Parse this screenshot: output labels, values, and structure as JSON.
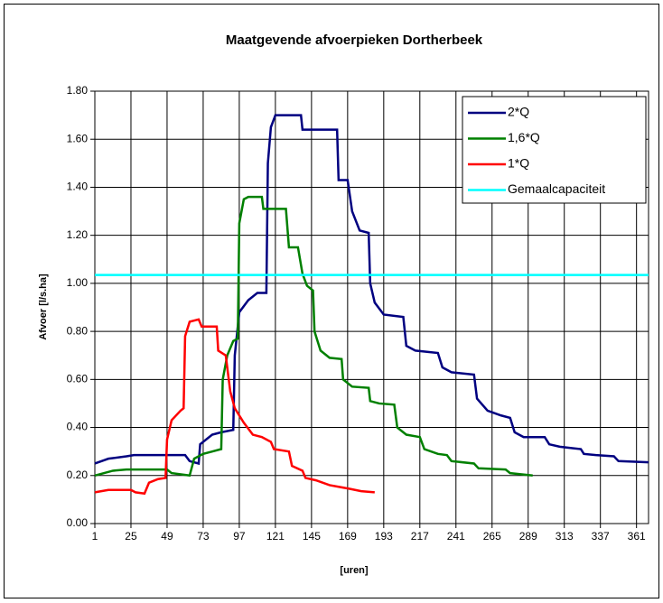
{
  "chart_data": {
    "type": "line",
    "title": "Maatgevende afvoerpieken Dortherbeek",
    "x_label": "[uren]",
    "y_label": "Afvoer [l/s.ha]",
    "xlim": [
      1,
      369
    ],
    "xticks": [
      1,
      25,
      49,
      73,
      97,
      121,
      145,
      169,
      193,
      217,
      241,
      265,
      289,
      313,
      337,
      361
    ],
    "ylim": [
      0,
      1.8
    ],
    "yticks": [
      {
        "value": 0,
        "label": "0.00"
      },
      {
        "value": 0.2,
        "label": "0.20"
      },
      {
        "value": 0.4,
        "label": "0.40"
      },
      {
        "value": 0.6,
        "label": "0.60"
      },
      {
        "value": 0.8,
        "label": "0.80"
      },
      {
        "value": 1.0,
        "label": "1.00"
      },
      {
        "value": 1.2,
        "label": "1.20"
      },
      {
        "value": 1.4,
        "label": "1.40"
      },
      {
        "value": 1.6,
        "label": "1.60"
      },
      {
        "value": 1.8,
        "label": "1.80"
      }
    ],
    "grid": true,
    "legend": "top-right",
    "series": [
      {
        "name": "2*Q",
        "color": "#000080",
        "x": [
          1,
          10,
          22,
          27,
          61,
          64,
          70,
          71,
          79,
          85,
          93,
          94,
          97,
          103,
          109,
          115,
          116,
          118,
          121,
          138,
          139,
          162,
          163,
          169,
          172,
          177,
          183,
          184,
          187,
          193,
          206,
          208,
          214,
          229,
          232,
          238,
          253,
          255,
          262,
          271,
          277,
          280,
          286,
          300,
          303,
          310,
          324,
          326,
          334,
          346,
          349,
          369
        ],
        "values": [
          0.25,
          0.27,
          0.28,
          0.285,
          0.285,
          0.26,
          0.25,
          0.33,
          0.37,
          0.38,
          0.39,
          0.7,
          0.88,
          0.93,
          0.96,
          0.96,
          1.5,
          1.65,
          1.7,
          1.7,
          1.64,
          1.64,
          1.43,
          1.43,
          1.3,
          1.22,
          1.21,
          1.0,
          0.92,
          0.87,
          0.86,
          0.74,
          0.72,
          0.71,
          0.65,
          0.63,
          0.62,
          0.52,
          0.47,
          0.45,
          0.44,
          0.38,
          0.36,
          0.36,
          0.33,
          0.32,
          0.31,
          0.29,
          0.285,
          0.28,
          0.26,
          0.255
        ]
      },
      {
        "name": "1,6*Q",
        "color": "#008000",
        "x": [
          1,
          13,
          22,
          49,
          52,
          64,
          67,
          73,
          79,
          85,
          86,
          89,
          93,
          96,
          97,
          100,
          103,
          112,
          113,
          128,
          130,
          136,
          139,
          142,
          146,
          147,
          151,
          157,
          165,
          166,
          172,
          183,
          184,
          190,
          200,
          202,
          208,
          217,
          220,
          229,
          235,
          238,
          253,
          256,
          274,
          277,
          292
        ],
        "values": [
          0.2,
          0.22,
          0.225,
          0.225,
          0.21,
          0.2,
          0.27,
          0.29,
          0.3,
          0.31,
          0.6,
          0.7,
          0.76,
          0.77,
          1.25,
          1.35,
          1.36,
          1.36,
          1.31,
          1.31,
          1.15,
          1.15,
          1.04,
          0.99,
          0.97,
          0.8,
          0.72,
          0.69,
          0.685,
          0.6,
          0.57,
          0.565,
          0.51,
          0.5,
          0.495,
          0.4,
          0.37,
          0.36,
          0.31,
          0.29,
          0.285,
          0.26,
          0.25,
          0.23,
          0.225,
          0.21,
          0.2
        ]
      },
      {
        "name": "1*Q",
        "color": "#ff0000",
        "x": [
          1,
          10,
          25,
          28,
          34,
          37,
          43,
          48,
          49,
          52,
          58,
          60,
          61,
          64,
          70,
          72,
          82,
          83,
          88,
          91,
          94,
          100,
          106,
          112,
          118,
          120,
          130,
          132,
          139,
          141,
          148,
          157,
          170,
          178,
          187
        ],
        "values": [
          0.13,
          0.14,
          0.14,
          0.13,
          0.125,
          0.17,
          0.185,
          0.19,
          0.35,
          0.43,
          0.47,
          0.48,
          0.78,
          0.84,
          0.85,
          0.82,
          0.82,
          0.72,
          0.7,
          0.55,
          0.48,
          0.42,
          0.37,
          0.36,
          0.34,
          0.31,
          0.3,
          0.24,
          0.22,
          0.19,
          0.18,
          0.16,
          0.145,
          0.135,
          0.13
        ]
      },
      {
        "name": "Gemaalcapaciteit",
        "color": "#00ffff",
        "x": [
          1,
          369
        ],
        "values": [
          1.035,
          1.035
        ]
      }
    ]
  }
}
